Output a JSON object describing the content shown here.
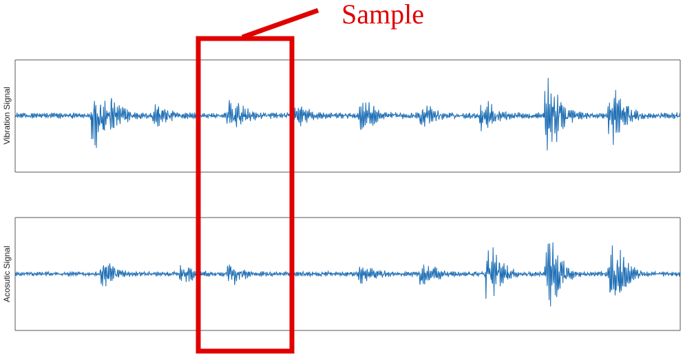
{
  "callout": {
    "label": "Sample",
    "color": "#E00000"
  },
  "colors": {
    "signal": "#1F6FB5",
    "frame": "#555555",
    "highlight": "#E00000"
  },
  "chart_data": [
    {
      "type": "line",
      "title": "",
      "xlabel": "",
      "ylabel": "Vibration Signal",
      "grid": false,
      "series": [
        {
          "baseline_amplitude": 0.07,
          "bursts": [
            {
              "t": 0.117,
              "amp": 0.65
            },
            {
              "t": 0.145,
              "amp": 0.22
            },
            {
              "t": 0.21,
              "amp": 0.22
            },
            {
              "t": 0.322,
              "amp": 0.32
            },
            {
              "t": 0.42,
              "amp": 0.18
            },
            {
              "t": 0.52,
              "amp": 0.28
            },
            {
              "t": 0.61,
              "amp": 0.2
            },
            {
              "t": 0.7,
              "amp": 0.32
            },
            {
              "t": 0.8,
              "amp": 0.8
            },
            {
              "t": 0.895,
              "amp": 0.6
            }
          ]
        }
      ]
    },
    {
      "type": "line",
      "title": "",
      "xlabel": "",
      "ylabel": "Acosutic Signal",
      "grid": false,
      "series": [
        {
          "baseline_amplitude": 0.06,
          "bursts": [
            {
              "t": 0.13,
              "amp": 0.26
            },
            {
              "t": 0.25,
              "amp": 0.16
            },
            {
              "t": 0.322,
              "amp": 0.22
            },
            {
              "t": 0.52,
              "amp": 0.18
            },
            {
              "t": 0.61,
              "amp": 0.28
            },
            {
              "t": 0.71,
              "amp": 0.65
            },
            {
              "t": 0.8,
              "amp": 0.8
            },
            {
              "t": 0.895,
              "amp": 0.85
            }
          ]
        }
      ]
    }
  ]
}
